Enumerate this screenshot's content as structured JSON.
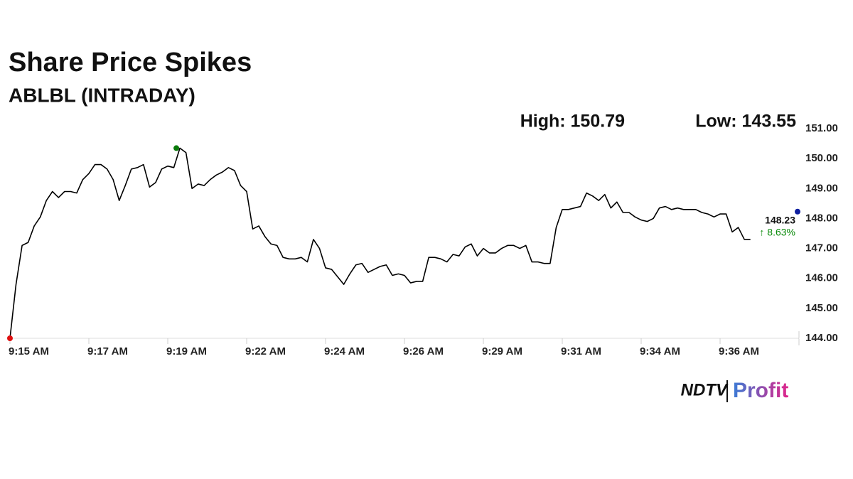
{
  "chart_data": {
    "type": "line",
    "title": "Share Price Spikes",
    "subtitle": "ABLBL (INTRADAY)",
    "high_label": "High: 150.79",
    "low_label": "Low: 143.55",
    "last_price": 148.23,
    "change_label": "↑ 8.63%",
    "logo": [
      "NDTV",
      "Profit"
    ],
    "color": "#000000",
    "categories": [
      "9:15 AM",
      null,
      null,
      null,
      null,
      null,
      null,
      null,
      null,
      null,
      null,
      null,
      null,
      "9:17 AM",
      null,
      null,
      null,
      null,
      null,
      null,
      null,
      null,
      null,
      null,
      null,
      null,
      "9:19 AM",
      null,
      null,
      null,
      null,
      null,
      null,
      null,
      null,
      null,
      null,
      null,
      null,
      "9:22 AM",
      null,
      null,
      null,
      null,
      null,
      null,
      null,
      null,
      null,
      null,
      null,
      null,
      "9:24 AM",
      null,
      null,
      null,
      null,
      null,
      null,
      null,
      null,
      null,
      null,
      null,
      null,
      "9:26 AM",
      null,
      null,
      null,
      null,
      null,
      null,
      null,
      null,
      null,
      null,
      null,
      null,
      "9:29 AM",
      null,
      null,
      null,
      null,
      null,
      null,
      null,
      null,
      null,
      null,
      null,
      null,
      "9:31 AM",
      null,
      null,
      null,
      null,
      null,
      null,
      null,
      null,
      null,
      null,
      null,
      null,
      "9:34 AM",
      null,
      null,
      null,
      null,
      null,
      null,
      null,
      null,
      null,
      null,
      null,
      null,
      "9:36 AM",
      null,
      null,
      null,
      null,
      null
    ],
    "values": [
      144.0,
      145.8,
      147.1,
      147.2,
      147.75,
      148.05,
      148.6,
      148.9,
      148.7,
      148.9,
      148.9,
      148.85,
      149.3,
      149.5,
      149.8,
      149.8,
      149.65,
      149.3,
      148.6,
      149.1,
      149.65,
      149.7,
      149.8,
      149.05,
      149.2,
      149.65,
      149.75,
      149.7,
      150.35,
      150.2,
      149.0,
      149.15,
      149.1,
      149.3,
      149.45,
      149.55,
      149.7,
      149.6,
      149.1,
      148.9,
      147.65,
      147.75,
      147.4,
      147.15,
      147.1,
      146.7,
      146.65,
      146.65,
      146.7,
      146.55,
      147.3,
      147.0,
      146.35,
      146.3,
      146.05,
      145.8,
      146.15,
      146.45,
      146.5,
      146.2,
      146.3,
      146.4,
      146.45,
      146.1,
      146.15,
      146.1,
      145.85,
      145.9,
      145.9,
      146.7,
      146.7,
      146.65,
      146.55,
      146.8,
      146.75,
      147.05,
      147.15,
      146.75,
      147.0,
      146.85,
      146.85,
      147.0,
      147.1,
      147.1,
      147.0,
      147.1,
      146.55,
      146.55,
      146.5,
      146.5,
      147.7,
      148.3,
      148.3,
      148.35,
      148.4,
      148.85,
      148.75,
      148.6,
      148.8,
      148.35,
      148.55,
      148.2,
      148.2,
      148.05,
      147.95,
      147.9,
      148.0,
      148.35,
      148.4,
      148.3,
      148.35,
      148.3,
      148.3,
      148.3,
      148.2,
      148.15,
      148.05,
      148.15,
      148.15,
      147.55,
      147.7,
      147.3,
      147.3
    ],
    "ylim": [
      144,
      151
    ],
    "yticks": [
      {
        "value": 144,
        "label": "144.00"
      },
      {
        "value": 145,
        "label": "145.00"
      },
      {
        "value": 146,
        "label": "146.00"
      },
      {
        "value": 147,
        "label": "147.00"
      },
      {
        "value": 148,
        "label": "148.00"
      },
      {
        "value": 149,
        "label": "149.00"
      },
      {
        "value": 150,
        "label": "150.00"
      },
      {
        "value": 151,
        "label": "151.00"
      }
    ]
  }
}
